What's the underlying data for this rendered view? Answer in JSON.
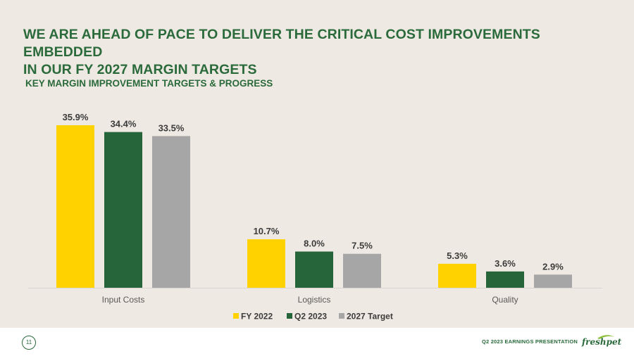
{
  "slide": {
    "title_line1": "WE ARE AHEAD OF PACE TO DELIVER THE CRITICAL COST IMPROVEMENTS EMBEDDED",
    "title_line2": "IN OUR FY 2027 MARGIN TARGETS",
    "subtitle": "KEY MARGIN IMPROVEMENT TARGETS & PROGRESS"
  },
  "footer": {
    "page_number": "11",
    "presentation": "Q2 2023 EARNINGS  PRESENTATION",
    "brand": "freshpet"
  },
  "colors": {
    "title": "#2a6a3b",
    "background": "#efe9e3"
  },
  "chart_data": {
    "type": "bar",
    "categories": [
      "Input Costs",
      "Logistics",
      "Quality"
    ],
    "series": [
      {
        "name": "FY 2022",
        "values": [
          35.9,
          10.7,
          5.3
        ],
        "labels": [
          "35.9%",
          "10.7%",
          "5.3%"
        ],
        "color": "#ffd200"
      },
      {
        "name": "Q2 2023",
        "values": [
          34.4,
          8.0,
          3.6
        ],
        "labels": [
          "34.4%",
          "8.0%",
          "3.6%"
        ],
        "color": "#26643a"
      },
      {
        "name": "2027 Target",
        "values": [
          33.5,
          7.5,
          2.9
        ],
        "labels": [
          "33.5%",
          "7.5%",
          "2.9%"
        ],
        "color": "#a6a6a6"
      }
    ],
    "ylim": [
      0,
      36
    ],
    "legend_position": "bottom",
    "grid": false
  }
}
